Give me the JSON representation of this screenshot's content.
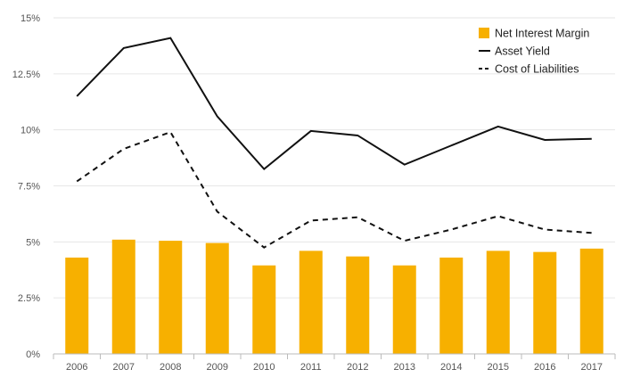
{
  "chart_data": {
    "type": "bar+line",
    "title": "",
    "xlabel": "",
    "ylabel": "",
    "categories": [
      "2006",
      "2007",
      "2008",
      "2009",
      "2010",
      "2011",
      "2012",
      "2013",
      "2014",
      "2015",
      "2016",
      "2017"
    ],
    "ylim": [
      0,
      15
    ],
    "yticks": [
      0,
      2.5,
      5,
      7.5,
      10,
      12.5,
      15
    ],
    "ytick_labels": [
      "0%",
      "2.5%",
      "5%",
      "7.5%",
      "10%",
      "12.5%",
      "15%"
    ],
    "grid": true,
    "legend_position": "top-right",
    "series": [
      {
        "name": "Net Interest Margin",
        "kind": "bar",
        "color": "#f7b000",
        "values": [
          4.3,
          5.1,
          5.05,
          4.95,
          3.95,
          4.6,
          4.35,
          3.95,
          4.3,
          4.6,
          4.55,
          4.7
        ]
      },
      {
        "name": "Asset Yield",
        "kind": "line",
        "style": "solid",
        "color": "#111111",
        "values": [
          11.5,
          13.65,
          14.1,
          10.6,
          8.25,
          9.95,
          9.75,
          8.45,
          9.3,
          10.15,
          9.55,
          9.6
        ]
      },
      {
        "name": "Cost of Liabilities",
        "kind": "line",
        "style": "dashed",
        "color": "#111111",
        "values": [
          7.7,
          9.15,
          9.9,
          6.35,
          4.75,
          5.95,
          6.1,
          5.05,
          5.55,
          6.15,
          5.55,
          5.4
        ]
      }
    ]
  }
}
